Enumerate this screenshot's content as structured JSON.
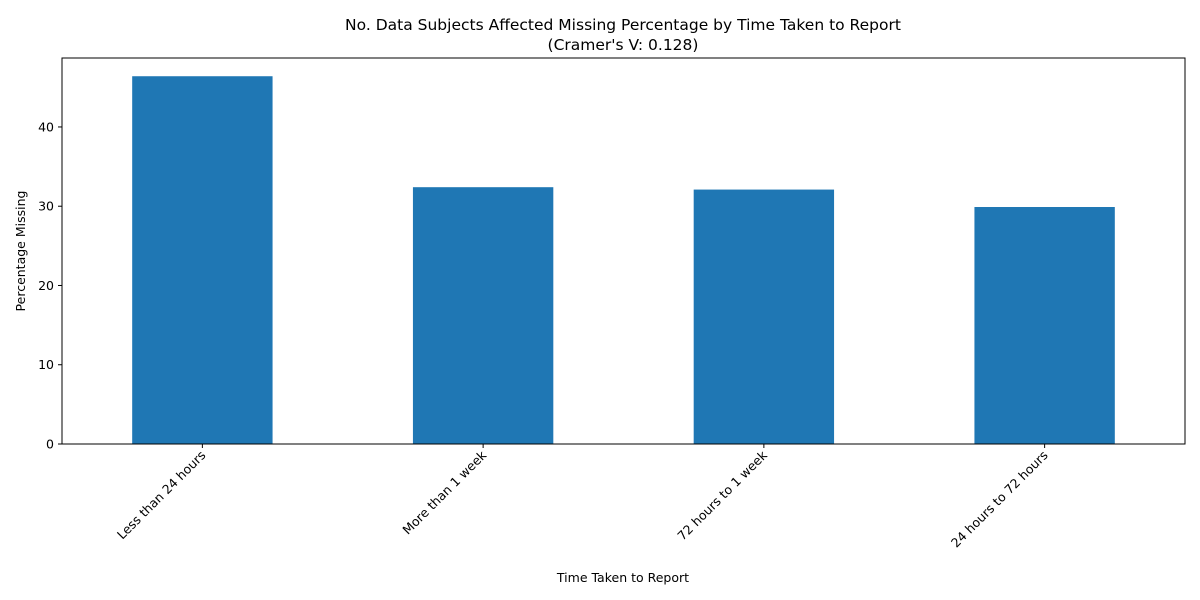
{
  "chart_data": {
    "type": "bar",
    "title": "No. Data Subjects Affected Missing Percentage by Time Taken to Report",
    "subtitle": "(Cramer's V: 0.128)",
    "xlabel": "Time Taken to Report",
    "ylabel": "Percentage Missing",
    "categories": [
      "Less than 24 hours",
      "More than 1 week",
      "72 hours to 1 week",
      "24 hours to 72 hours"
    ],
    "values": [
      46.4,
      32.4,
      32.1,
      29.9
    ],
    "ylim": [
      0,
      48.7
    ],
    "yticks": [
      0,
      10,
      20,
      30,
      40
    ],
    "bar_color": "#1f77b4",
    "grid": false,
    "legend": "none"
  }
}
